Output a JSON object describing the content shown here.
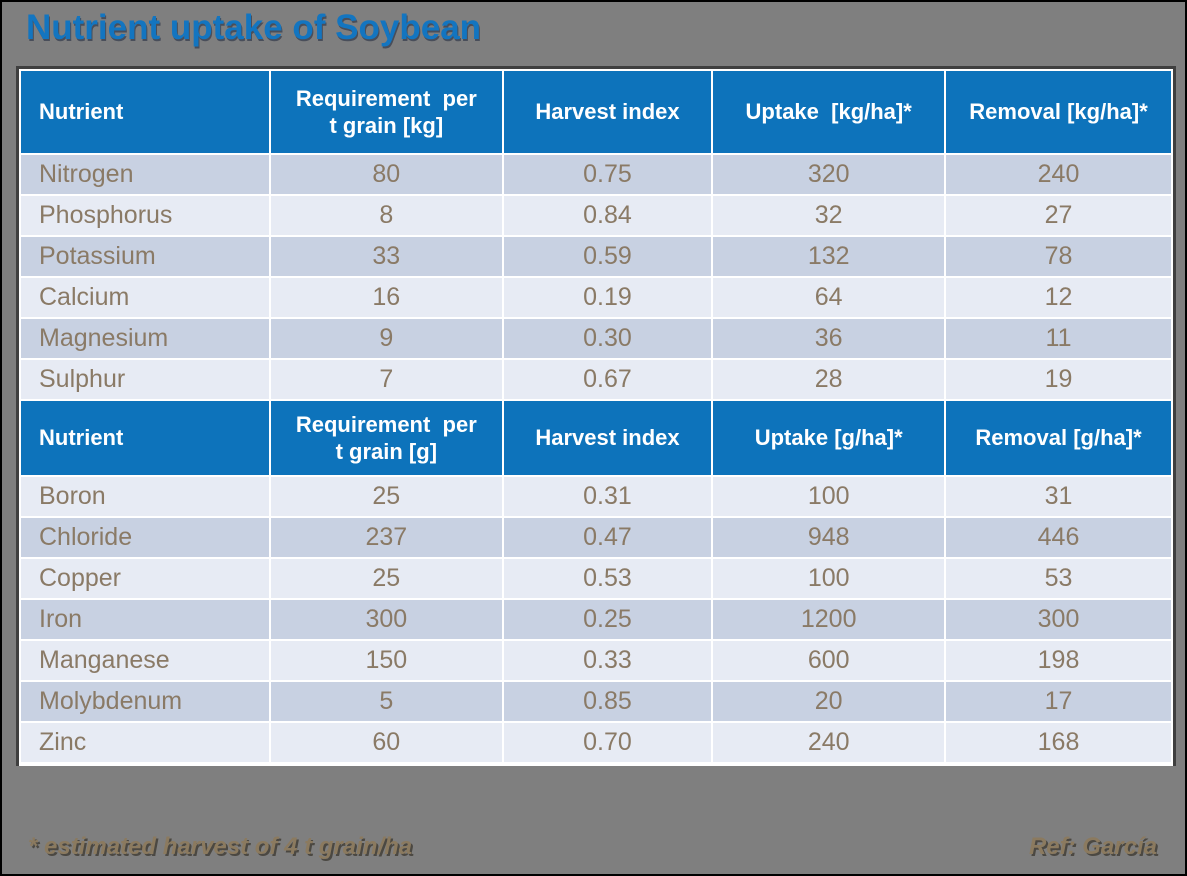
{
  "slide": {
    "title": "Nutrient uptake of Soybean",
    "footnote": "* estimated harvest of 4 t grain/ha",
    "reference": "Ref: García"
  },
  "colors": {
    "slide_bg": "#7F7F7F",
    "title_blue": "#1375C0",
    "header_blue": "#0D73BB",
    "row_dark": "#C8D1E2",
    "row_light": "#E7EBF4",
    "cell_text": "#8A7A66",
    "footer_text": "#8B7A5F",
    "table_border": "#3F3F3F"
  },
  "chart_data": {
    "type": "table",
    "title": "Nutrient uptake of Soybean",
    "sections": [
      {
        "headers": [
          "Nutrient",
          "Requirement  per\nt grain [kg]",
          "Harvest index",
          "Uptake  [kg/ha]*",
          "Removal [kg/ha]*"
        ],
        "rows": [
          [
            "Nitrogen",
            "80",
            "0.75",
            "320",
            "240"
          ],
          [
            "Phosphorus",
            "8",
            "0.84",
            "32",
            "27"
          ],
          [
            "Potassium",
            "33",
            "0.59",
            "132",
            "78"
          ],
          [
            "Calcium",
            "16",
            "0.19",
            "64",
            "12"
          ],
          [
            "Magnesium",
            "9",
            "0.30",
            "36",
            "11"
          ],
          [
            "Sulphur",
            "7",
            "0.67",
            "28",
            "19"
          ]
        ],
        "first_row_shade": "dark"
      },
      {
        "headers": [
          "Nutrient",
          "Requirement  per\nt grain [g]",
          "Harvest index",
          "Uptake [g/ha]*",
          "Removal [g/ha]*"
        ],
        "rows": [
          [
            "Boron",
            "25",
            "0.31",
            "100",
            "31"
          ],
          [
            "Chloride",
            "237",
            "0.47",
            "948",
            "446"
          ],
          [
            "Copper",
            "25",
            "0.53",
            "100",
            "53"
          ],
          [
            "Iron",
            "300",
            "0.25",
            "1200",
            "300"
          ],
          [
            "Manganese",
            "150",
            "0.33",
            "600",
            "198"
          ],
          [
            "Molybdenum",
            "5",
            "0.85",
            "20",
            "17"
          ],
          [
            "Zinc",
            "60",
            "0.70",
            "240",
            "168"
          ]
        ],
        "first_row_shade": "light"
      }
    ]
  }
}
